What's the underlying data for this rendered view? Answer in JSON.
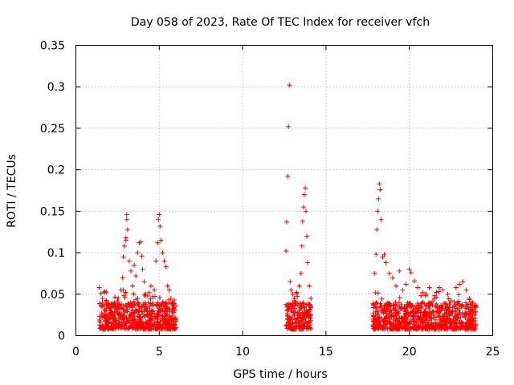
{
  "chart_data": {
    "type": "scatter",
    "title": "Day 058 of 2023, Rate Of TEC Index for receiver vfch",
    "xlabel": "GPS time / hours",
    "ylabel": "ROTI / TECUs",
    "xlim": [
      0,
      25
    ],
    "ylim": [
      0,
      0.35
    ],
    "x_ticks": [
      0,
      5,
      10,
      15,
      20,
      25
    ],
    "y_ticks": [
      0,
      0.05,
      0.1,
      0.15,
      0.2,
      0.25,
      0.3,
      0.35
    ],
    "x_tick_labels": [
      "0",
      "5",
      "10",
      "15",
      "20",
      "25"
    ],
    "y_tick_labels": [
      "0",
      "0.05",
      "0.1",
      "0.15",
      "0.2",
      "0.25",
      "0.3",
      "0.35"
    ],
    "grid": true,
    "marker": "+",
    "marker_color": "#ff0000",
    "series": [
      {
        "name": "ROTI",
        "points": [
          [
            1.4,
            0.058
          ],
          [
            1.5,
            0.051
          ],
          [
            1.6,
            0.045
          ],
          [
            1.7,
            0.038
          ],
          [
            1.8,
            0.041
          ],
          [
            2.0,
            0.033
          ],
          [
            2.1,
            0.028
          ],
          [
            2.3,
            0.036
          ],
          [
            2.5,
            0.042
          ],
          [
            2.6,
            0.034
          ],
          [
            2.7,
            0.055
          ],
          [
            2.8,
            0.07
          ],
          [
            2.85,
            0.095
          ],
          [
            2.9,
            0.108
          ],
          [
            3.0,
            0.115
          ],
          [
            3.0,
            0.118
          ],
          [
            3.05,
            0.14
          ],
          [
            3.05,
            0.146
          ],
          [
            3.1,
            0.128
          ],
          [
            3.2,
            0.09
          ],
          [
            3.3,
            0.078
          ],
          [
            3.4,
            0.06
          ],
          [
            3.5,
            0.085
          ],
          [
            3.6,
            0.072
          ],
          [
            3.7,
            0.1
          ],
          [
            3.8,
            0.112
          ],
          [
            3.9,
            0.113
          ],
          [
            3.95,
            0.096
          ],
          [
            4.0,
            0.08
          ],
          [
            4.1,
            0.065
          ],
          [
            4.2,
            0.05
          ],
          [
            4.3,
            0.048
          ],
          [
            4.4,
            0.052
          ],
          [
            4.5,
            0.06
          ],
          [
            4.6,
            0.047
          ],
          [
            4.7,
            0.055
          ],
          [
            4.8,
            0.09
          ],
          [
            4.9,
            0.112
          ],
          [
            4.95,
            0.14
          ],
          [
            5.0,
            0.146
          ],
          [
            5.05,
            0.132
          ],
          [
            5.1,
            0.115
          ],
          [
            5.2,
            0.1
          ],
          [
            5.3,
            0.09
          ],
          [
            5.4,
            0.083
          ],
          [
            5.5,
            0.06
          ],
          [
            5.6,
            0.055
          ],
          [
            5.7,
            0.045
          ],
          [
            5.8,
            0.038
          ],
          [
            5.9,
            0.043
          ],
          [
            6.0,
            0.036
          ],
          [
            12.6,
            0.102
          ],
          [
            12.65,
            0.137
          ],
          [
            12.7,
            0.192
          ],
          [
            12.75,
            0.252
          ],
          [
            12.8,
            0.302
          ],
          [
            12.85,
            0.065
          ],
          [
            12.9,
            0.055
          ],
          [
            13.0,
            0.05
          ],
          [
            13.1,
            0.045
          ],
          [
            13.2,
            0.04
          ],
          [
            13.4,
            0.06
          ],
          [
            13.5,
            0.075
          ],
          [
            13.55,
            0.108
          ],
          [
            13.6,
            0.138
          ],
          [
            13.65,
            0.155
          ],
          [
            13.7,
            0.17
          ],
          [
            13.75,
            0.178
          ],
          [
            13.8,
            0.15
          ],
          [
            13.85,
            0.12
          ],
          [
            13.9,
            0.088
          ],
          [
            14.0,
            0.06
          ],
          [
            14.1,
            0.045
          ],
          [
            17.9,
            0.075
          ],
          [
            18.0,
            0.098
          ],
          [
            18.05,
            0.128
          ],
          [
            18.1,
            0.15
          ],
          [
            18.15,
            0.165
          ],
          [
            18.2,
            0.183
          ],
          [
            18.25,
            0.176
          ],
          [
            18.3,
            0.14
          ],
          [
            18.4,
            0.095
          ],
          [
            18.5,
            0.098
          ],
          [
            18.6,
            0.088
          ],
          [
            18.8,
            0.075
          ],
          [
            19.0,
            0.07
          ],
          [
            19.2,
            0.06
          ],
          [
            19.4,
            0.078
          ],
          [
            19.6,
            0.055
          ],
          [
            19.8,
            0.062
          ],
          [
            20.0,
            0.08
          ],
          [
            20.1,
            0.076
          ],
          [
            20.3,
            0.066
          ],
          [
            20.5,
            0.058
          ],
          [
            20.8,
            0.052
          ],
          [
            21.0,
            0.05
          ],
          [
            21.2,
            0.058
          ],
          [
            21.5,
            0.045
          ],
          [
            21.8,
            0.058
          ],
          [
            22.0,
            0.055
          ],
          [
            22.3,
            0.05
          ],
          [
            22.5,
            0.042
          ],
          [
            22.8,
            0.058
          ],
          [
            23.0,
            0.062
          ],
          [
            23.2,
            0.065
          ],
          [
            23.4,
            0.055
          ],
          [
            23.6,
            0.045
          ],
          [
            23.8,
            0.04
          ],
          [
            24.0,
            0.035
          ]
        ]
      }
    ],
    "dense_bands": [
      {
        "x_start": 1.4,
        "x_end": 6.0,
        "y_floor": 0.008,
        "y_typical_max": 0.04
      },
      {
        "x_start": 12.6,
        "x_end": 14.1,
        "y_floor": 0.008,
        "y_typical_max": 0.04
      },
      {
        "x_start": 17.8,
        "x_end": 24.0,
        "y_floor": 0.008,
        "y_typical_max": 0.04
      }
    ]
  }
}
